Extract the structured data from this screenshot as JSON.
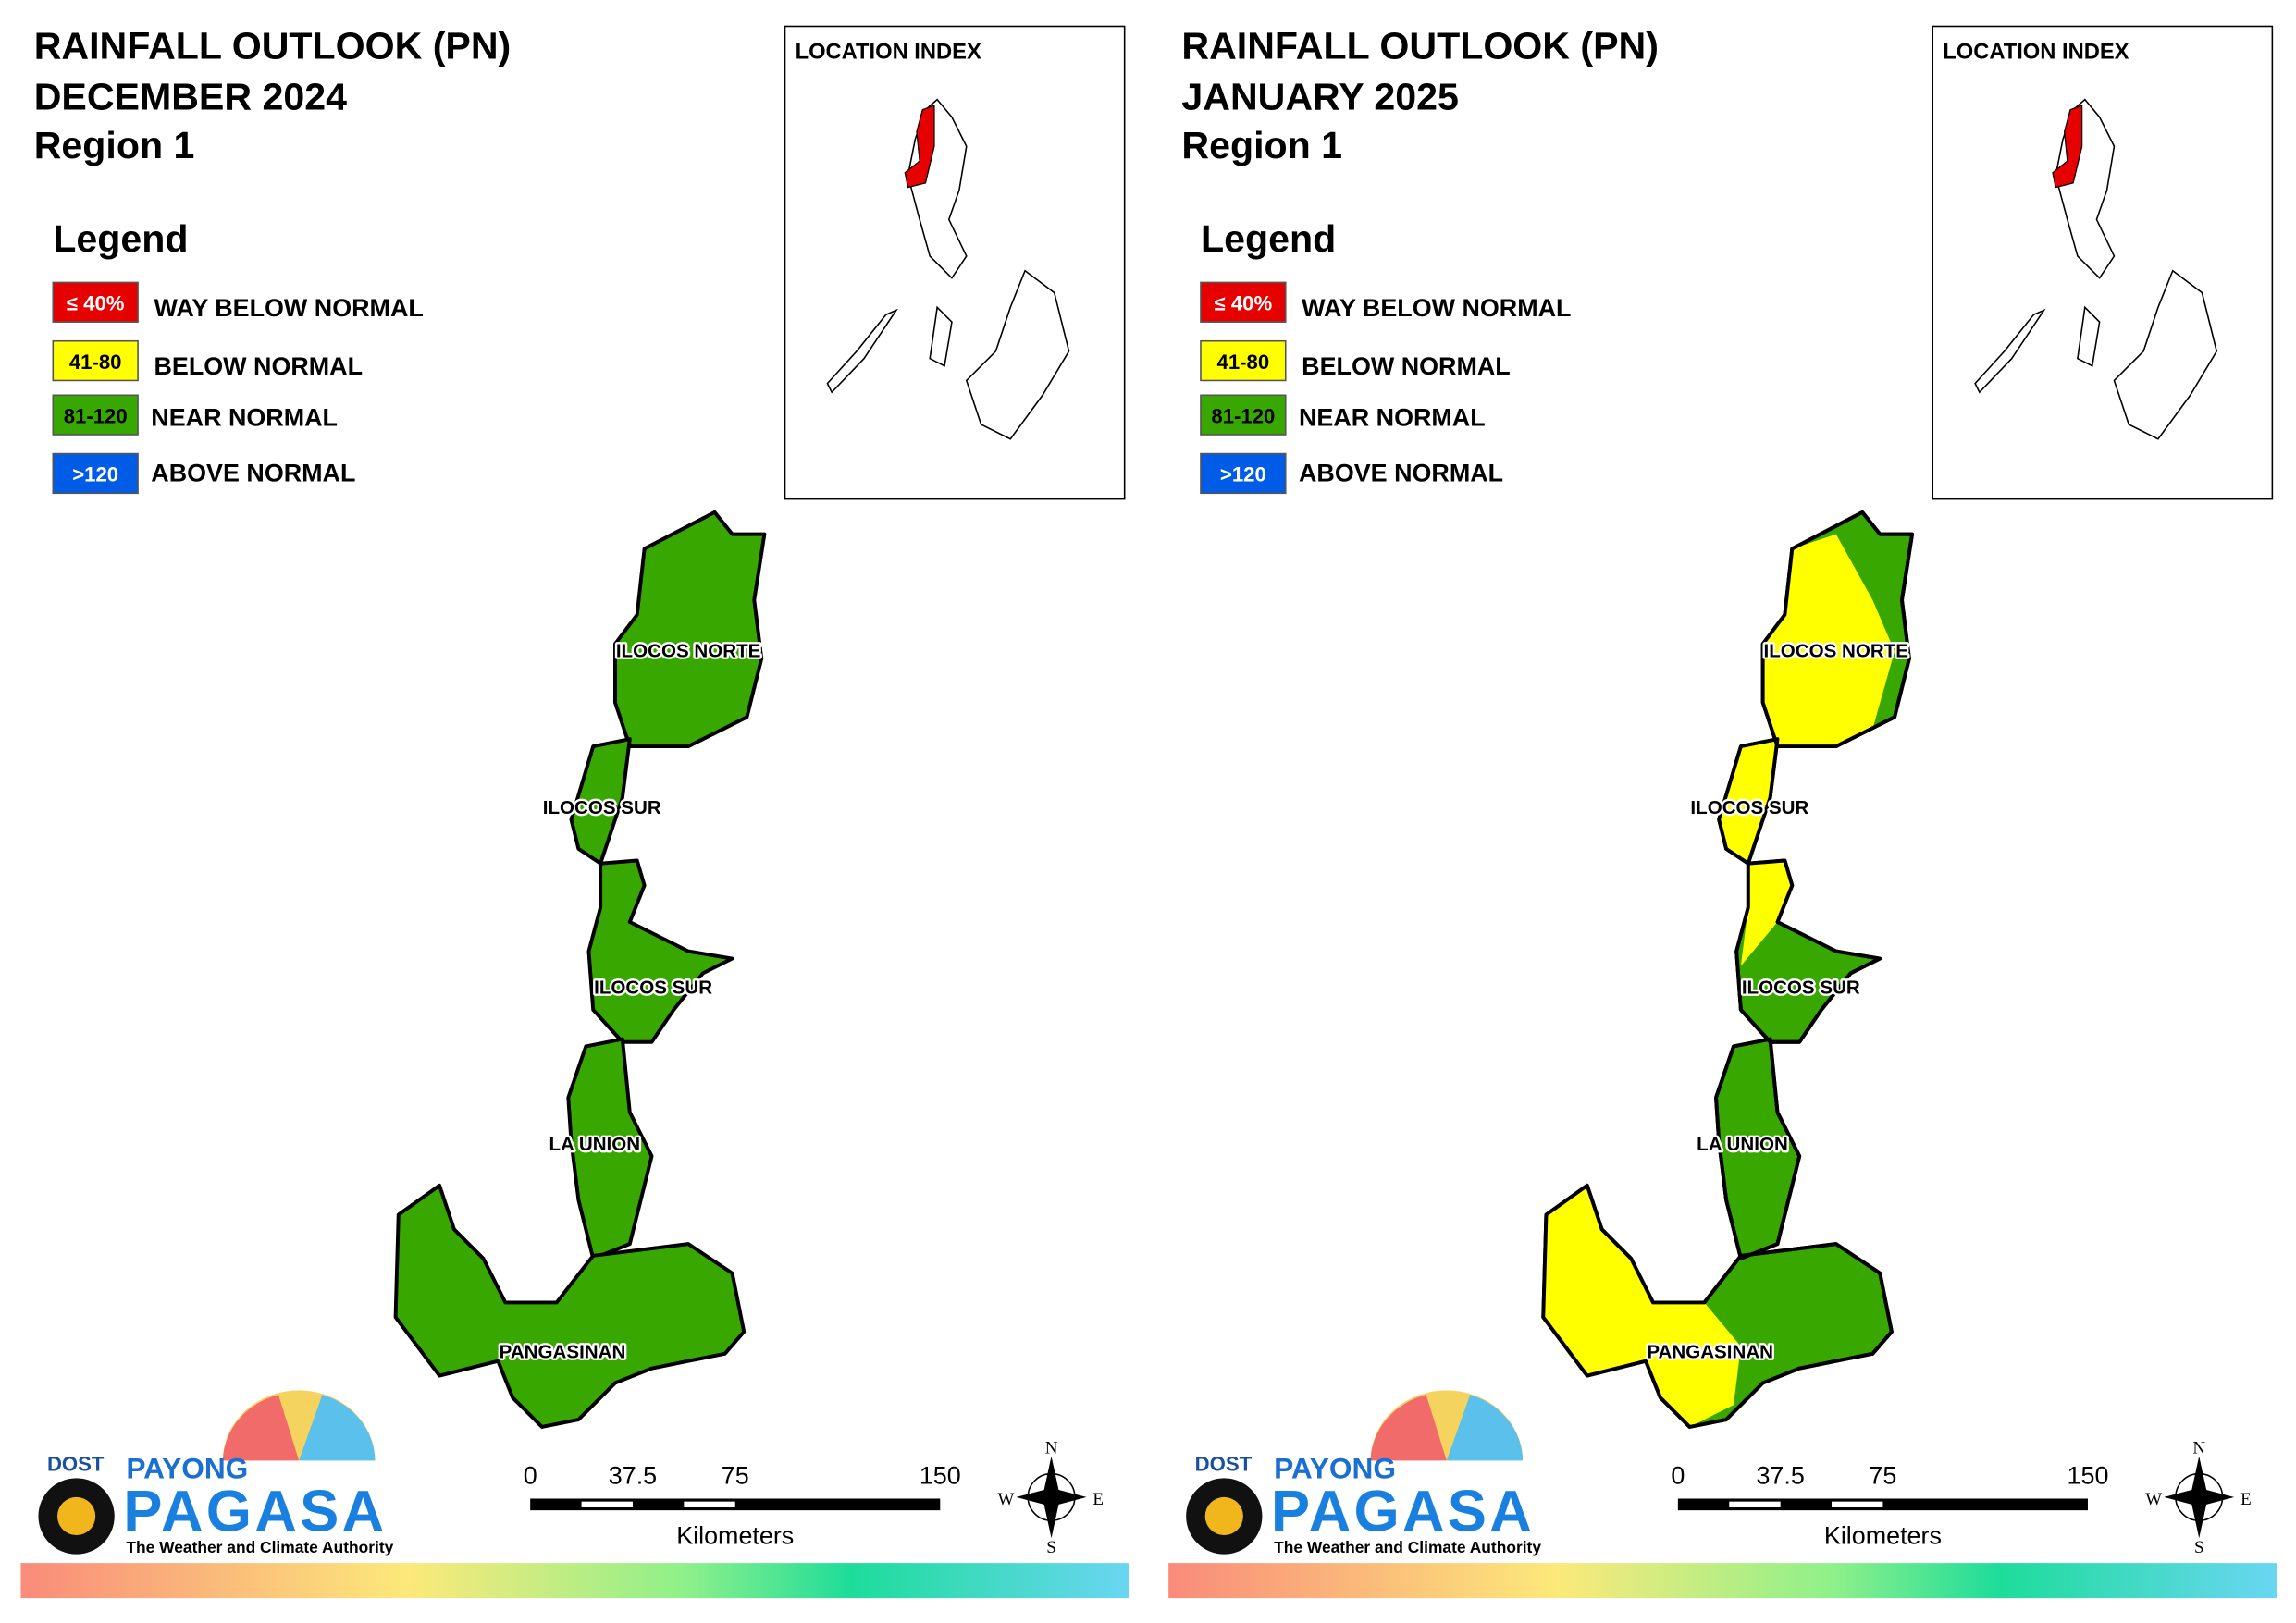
{
  "panels": [
    {
      "title": [
        "RAINFALL OUTLOOK (PN)",
        "DECEMBER 2024",
        "Region 1"
      ],
      "location_index": "LOCATION INDEX",
      "legend": {
        "title": "Legend",
        "items": [
          {
            "range": "≤ 40%",
            "label": "WAY BELOW NORMAL",
            "color": "#e60000"
          },
          {
            "range": "41-80",
            "label": "BELOW NORMAL",
            "color": "#ffff00"
          },
          {
            "range": "81-120",
            "label": "NEAR NORMAL",
            "color": "#38a800"
          },
          {
            "range": ">120",
            "label": "ABOVE NORMAL",
            "color": "#005ce6"
          }
        ]
      },
      "map_labels": [
        "ILOCOS NORTE",
        "ILOCOS SUR",
        "ILOCOS SUR",
        "LA UNION",
        "PANGASINAN"
      ],
      "scale_bar": {
        "ticks": [
          "0",
          "37.5",
          "75",
          "150"
        ],
        "unit": "Kilometers"
      },
      "compass": [
        "N",
        "S",
        "E",
        "W"
      ],
      "logo": {
        "agency": "DOST",
        "brand_top": "PAYONG",
        "brand": "PAGASA",
        "tagline": "The Weather and Climate Authority"
      }
    },
    {
      "title": [
        "RAINFALL OUTLOOK (PN)",
        "JANUARY 2025",
        "Region 1"
      ],
      "location_index": "LOCATION INDEX",
      "legend": {
        "title": "Legend",
        "items": [
          {
            "range": "≤ 40%",
            "label": "WAY BELOW NORMAL",
            "color": "#e60000"
          },
          {
            "range": "41-80",
            "label": "BELOW NORMAL",
            "color": "#ffff00"
          },
          {
            "range": "81-120",
            "label": "NEAR NORMAL",
            "color": "#38a800"
          },
          {
            "range": ">120",
            "label": "ABOVE NORMAL",
            "color": "#005ce6"
          }
        ]
      },
      "map_labels": [
        "ILOCOS NORTE",
        "ILOCOS SUR",
        "ILOCOS SUR",
        "LA UNION",
        "PANGASINAN"
      ],
      "scale_bar": {
        "ticks": [
          "0",
          "37.5",
          "75",
          "150"
        ],
        "unit": "Kilometers"
      },
      "compass": [
        "N",
        "S",
        "E",
        "W"
      ],
      "logo": {
        "agency": "DOST",
        "brand_top": "PAYONG",
        "brand": "PAGASA",
        "tagline": "The Weather and Climate Authority"
      }
    }
  ]
}
